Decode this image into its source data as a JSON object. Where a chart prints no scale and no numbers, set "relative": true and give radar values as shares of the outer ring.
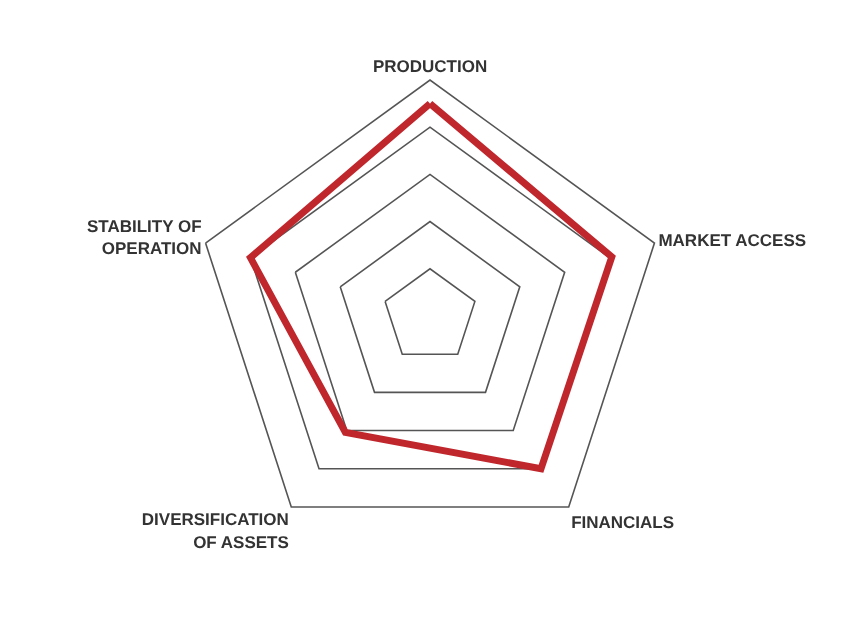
{
  "chart_data": {
    "type": "radar",
    "relative": true,
    "grid": true,
    "marker": "none",
    "line_style": "solid",
    "categories": [
      "PRODUCTION",
      "MARKET ACCESS",
      "FINANCIALS",
      "DIVERSIFICATION\nOF ASSETS",
      "STABILITY OF\nOPERATION"
    ],
    "series": [
      {
        "color": "#c0272d",
        "values": [
          0.9,
          0.81,
          0.8,
          0.61,
          0.8
        ]
      }
    ]
  }
}
